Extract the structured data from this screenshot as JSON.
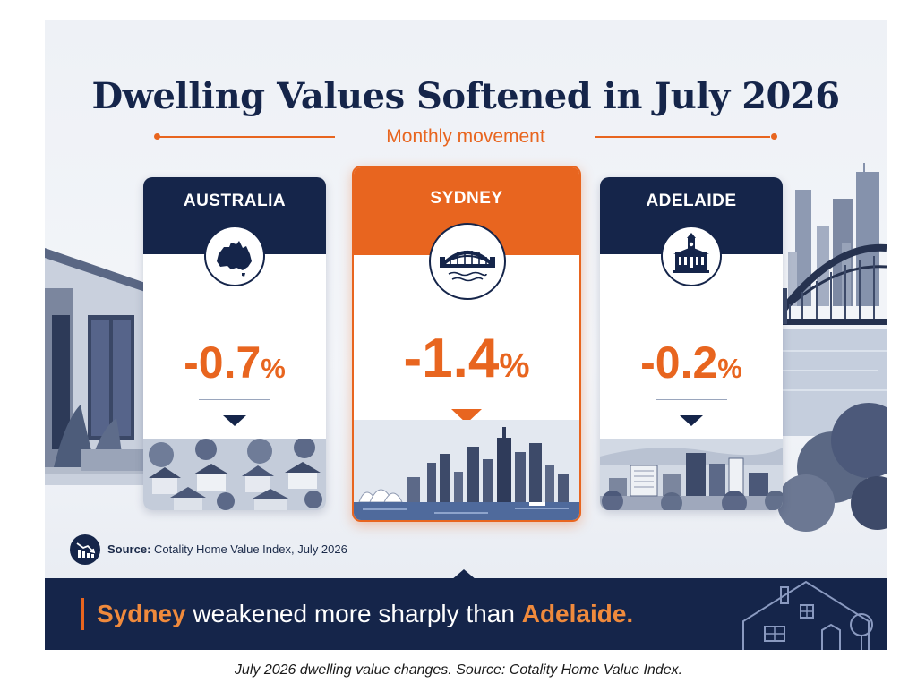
{
  "poster": {
    "title": "Dwelling Values Softened in July 2026",
    "subtitle": "Monthly movement",
    "accent_color": "#e8651f",
    "navy_color": "#15254a"
  },
  "cards": [
    {
      "region": "AUSTRALIA",
      "change": "-0.7",
      "unit": "%",
      "direction": "down",
      "emblem_icon": "australia-map-icon",
      "scene": "suburban-houses"
    },
    {
      "region": "SYDNEY",
      "change": "-1.4",
      "unit": "%",
      "direction": "down",
      "emblem_icon": "harbour-bridge-icon",
      "scene": "sydney-skyline-opera-house",
      "highlighted": true
    },
    {
      "region": "ADELAIDE",
      "change": "-0.2",
      "unit": "%",
      "direction": "down",
      "emblem_icon": "town-hall-icon",
      "scene": "adelaide-city"
    }
  ],
  "source": {
    "icon": "chart-down-icon",
    "label": "Source:",
    "text": "Cotality Home Value Index, July 2026"
  },
  "banner": {
    "part1": "Sydney",
    "part2": " weakened more sharply than ",
    "part3": "Adelaide.",
    "icon": "house-outline-icon"
  },
  "caption": "July 2026 dwelling value changes. Source: Cotality Home Value Index."
}
